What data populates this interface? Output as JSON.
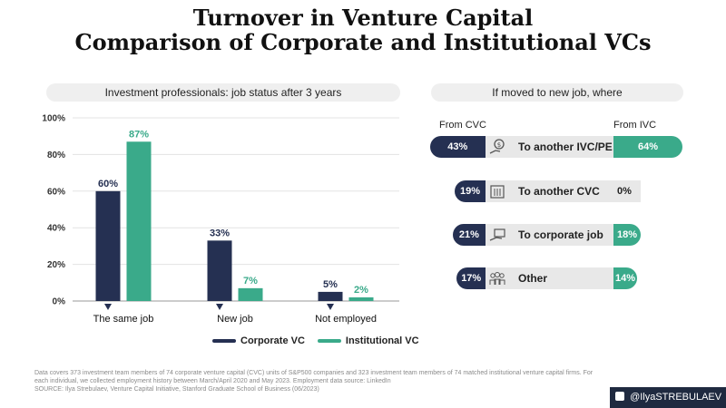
{
  "title_line1": "Turnover in Venture Capital",
  "title_line2": "Comparison of Corporate and Institutional VCs",
  "left_panel_title": "Investment professionals: job status after 3 years",
  "right_panel_title": "If moved to new job, where",
  "chart_data": [
    {
      "type": "bar",
      "title": "Investment professionals: job status after 3 years",
      "categories": [
        "The same job",
        "New job",
        "Not employed"
      ],
      "series": [
        {
          "name": "Corporate VC",
          "values": [
            60,
            33,
            5
          ],
          "labels": [
            "60%",
            "33%",
            "5%"
          ],
          "color": "#253052"
        },
        {
          "name": "Institutional VC",
          "values": [
            87,
            7,
            2
          ],
          "labels": [
            "87%",
            "7%",
            "2%"
          ],
          "color": "#3aaa8a"
        }
      ],
      "ylim": [
        0,
        100
      ],
      "y_ticks": [
        0,
        20,
        40,
        60,
        80,
        100
      ],
      "y_tick_labels": [
        "0%",
        "20%",
        "40%",
        "60%",
        "80%",
        "100%"
      ],
      "grid": true,
      "legend": "bottom"
    },
    {
      "type": "bar",
      "title": "If moved to new job, where",
      "column_left": "From CVC",
      "column_right": "From IVC",
      "categories": [
        "To another IVC/PE",
        "To another CVC",
        "To corporate job",
        "Other"
      ],
      "icons": [
        "money-hand-icon",
        "building-icon",
        "briefcase-hand-icon",
        "people-icon"
      ],
      "series": [
        {
          "name": "From CVC",
          "values": [
            43,
            19,
            21,
            17
          ],
          "labels": [
            "43%",
            "19%",
            "21%",
            "17%"
          ],
          "color": "#253052"
        },
        {
          "name": "From IVC",
          "values": [
            64,
            0,
            18,
            14
          ],
          "labels": [
            "64%",
            "0%",
            "18%",
            "14%"
          ],
          "color": "#3aaa8a"
        }
      ]
    }
  ],
  "legend": {
    "corporate": "Corporate VC",
    "institutional": "Institutional VC"
  },
  "footnote": "Data covers 373 investment team members of 74 corporate venture capital (CVC) units of S&P500 companies and 323 investment team members of 74 matched institutional venture capital firms. For each individual, we collected employment history between March/April 2020 and May 2023. Employment data source: LinkedIn",
  "source": "SOURCE: Ilya Strebulaev, Venture Capital Initiative, Stanford Graduate School of Business (06/2023)",
  "brand": "@IlyaSTREBULAEV"
}
